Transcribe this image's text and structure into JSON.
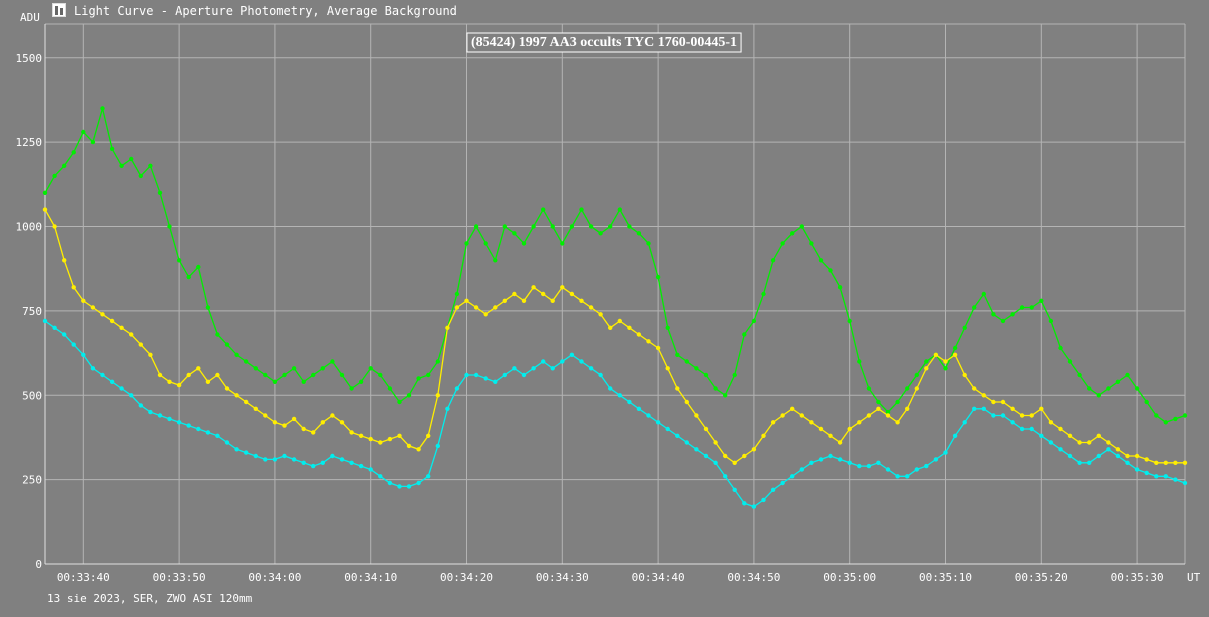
{
  "window": {
    "title": "Light Curve - Aperture Photometry, Average Background",
    "icon": "light-curve-app-icon"
  },
  "footer": {
    "text": "13 sie 2023, SER, ZWO ASI 120mm"
  },
  "colors": {
    "background": "#808080",
    "grid": "#b4b4b4",
    "text": "#ffffff",
    "green": "#00ee00",
    "yellow": "#ffee00",
    "cyan": "#00eeee"
  },
  "chart_data": {
    "type": "line",
    "title": "(85424) 1997 AA3 occults TYC 1760-00445-1",
    "ylabel": "ADU",
    "xunit": "UT",
    "grid": true,
    "ylim": [
      0,
      1600
    ],
    "yticks": [
      0,
      250,
      500,
      750,
      1000,
      1250,
      1500
    ],
    "xlim": [
      "00:33:36.0",
      "00:35:35.0"
    ],
    "xticks": [
      "00:33:40",
      "00:33:50",
      "00:34:00",
      "00:34:10",
      "00:34:20",
      "00:34:30",
      "00:34:40",
      "00:34:50",
      "00:35:00",
      "00:35:10",
      "00:35:20",
      "00:35:30"
    ],
    "series": [
      {
        "color": "green",
        "x": [
          "00:33:36.0",
          "00:33:37.0",
          "00:33:38.0",
          "00:33:39.0",
          "00:33:40.0",
          "00:33:41.0",
          "00:33:42.0",
          "00:33:43.0",
          "00:33:44.0",
          "00:33:45.0",
          "00:33:46.0",
          "00:33:47.0",
          "00:33:48.0",
          "00:33:49.0",
          "00:33:50.0",
          "00:33:51.0",
          "00:33:52.0",
          "00:33:53.0",
          "00:33:54.0",
          "00:33:55.0",
          "00:33:56.0",
          "00:33:57.0",
          "00:33:58.0",
          "00:33:59.0",
          "00:34:00.0",
          "00:34:01.0",
          "00:34:02.0",
          "00:34:03.0",
          "00:34:04.0",
          "00:34:05.0",
          "00:34:06.0",
          "00:34:07.0",
          "00:34:08.0",
          "00:34:09.0",
          "00:34:10.0",
          "00:34:11.0",
          "00:34:12.0",
          "00:34:13.0",
          "00:34:14.0",
          "00:34:15.0",
          "00:34:16.0",
          "00:34:17.0",
          "00:34:18.0",
          "00:34:19.0",
          "00:34:20.0",
          "00:34:21.0",
          "00:34:22.0",
          "00:34:23.0",
          "00:34:24.0",
          "00:34:25.0",
          "00:34:26.0",
          "00:34:27.0",
          "00:34:28.0",
          "00:34:29.0",
          "00:34:30.0",
          "00:34:31.0",
          "00:34:32.0",
          "00:34:33.0",
          "00:34:34.0",
          "00:34:35.0",
          "00:34:36.0",
          "00:34:37.0",
          "00:34:38.0",
          "00:34:39.0",
          "00:34:40.0",
          "00:34:41.0",
          "00:34:42.0",
          "00:34:43.0",
          "00:34:44.0",
          "00:34:45.0",
          "00:34:46.0",
          "00:34:47.0",
          "00:34:48.0",
          "00:34:49.0",
          "00:34:50.0",
          "00:34:51.0",
          "00:34:52.0",
          "00:34:53.0",
          "00:34:54.0",
          "00:34:55.0",
          "00:34:56.0",
          "00:34:57.0",
          "00:34:58.0",
          "00:34:59.0",
          "00:35:00.0",
          "00:35:01.0",
          "00:35:02.0",
          "00:35:03.0",
          "00:35:04.0",
          "00:35:05.0",
          "00:35:06.0",
          "00:35:07.0",
          "00:35:08.0",
          "00:35:09.0",
          "00:35:10.0",
          "00:35:11.0",
          "00:35:12.0",
          "00:35:13.0",
          "00:35:14.0",
          "00:35:15.0",
          "00:35:16.0",
          "00:35:17.0",
          "00:35:18.0",
          "00:35:19.0",
          "00:35:20.0",
          "00:35:21.0",
          "00:35:22.0",
          "00:35:23.0",
          "00:35:24.0",
          "00:35:25.0",
          "00:35:26.0",
          "00:35:27.0",
          "00:35:28.0",
          "00:35:29.0",
          "00:35:30.0",
          "00:35:31.0",
          "00:35:32.0",
          "00:35:33.0",
          "00:35:34.0",
          "00:35:35.0"
        ],
        "y": [
          1100,
          1150,
          1180,
          1220,
          1280,
          1250,
          1350,
          1230,
          1180,
          1200,
          1150,
          1180,
          1100,
          1000,
          900,
          850,
          880,
          760,
          680,
          650,
          620,
          600,
          580,
          560,
          540,
          560,
          580,
          540,
          560,
          580,
          600,
          560,
          520,
          540,
          580,
          560,
          520,
          480,
          500,
          550,
          560,
          600,
          700,
          800,
          950,
          1000,
          950,
          900,
          1000,
          980,
          950,
          1000,
          1050,
          1000,
          950,
          1000,
          1050,
          1000,
          980,
          1000,
          1050,
          1000,
          980,
          950,
          850,
          700,
          620,
          600,
          580,
          560,
          520,
          500,
          560,
          680,
          720,
          800,
          900,
          950,
          980,
          1000,
          950,
          900,
          870,
          820,
          720,
          600,
          520,
          480,
          450,
          480,
          520,
          560,
          600,
          620,
          580,
          640,
          700,
          760,
          800,
          740,
          720,
          740,
          760,
          760,
          780,
          720,
          640,
          600,
          560,
          520,
          500,
          520,
          540,
          560,
          520,
          480,
          440,
          420,
          430,
          440
        ]
      },
      {
        "color": "yellow",
        "x": [
          "00:33:36.0",
          "00:33:37.0",
          "00:33:38.0",
          "00:33:39.0",
          "00:33:40.0",
          "00:33:41.0",
          "00:33:42.0",
          "00:33:43.0",
          "00:33:44.0",
          "00:33:45.0",
          "00:33:46.0",
          "00:33:47.0",
          "00:33:48.0",
          "00:33:49.0",
          "00:33:50.0",
          "00:33:51.0",
          "00:33:52.0",
          "00:33:53.0",
          "00:33:54.0",
          "00:33:55.0",
          "00:33:56.0",
          "00:33:57.0",
          "00:33:58.0",
          "00:33:59.0",
          "00:34:00.0",
          "00:34:01.0",
          "00:34:02.0",
          "00:34:03.0",
          "00:34:04.0",
          "00:34:05.0",
          "00:34:06.0",
          "00:34:07.0",
          "00:34:08.0",
          "00:34:09.0",
          "00:34:10.0",
          "00:34:11.0",
          "00:34:12.0",
          "00:34:13.0",
          "00:34:14.0",
          "00:34:15.0",
          "00:34:16.0",
          "00:34:17.0",
          "00:34:18.0",
          "00:34:19.0",
          "00:34:20.0",
          "00:34:21.0",
          "00:34:22.0",
          "00:34:23.0",
          "00:34:24.0",
          "00:34:25.0",
          "00:34:26.0",
          "00:34:27.0",
          "00:34:28.0",
          "00:34:29.0",
          "00:34:30.0",
          "00:34:31.0",
          "00:34:32.0",
          "00:34:33.0",
          "00:34:34.0",
          "00:34:35.0",
          "00:34:36.0",
          "00:34:37.0",
          "00:34:38.0",
          "00:34:39.0",
          "00:34:40.0",
          "00:34:41.0",
          "00:34:42.0",
          "00:34:43.0",
          "00:34:44.0",
          "00:34:45.0",
          "00:34:46.0",
          "00:34:47.0",
          "00:34:48.0",
          "00:34:49.0",
          "00:34:50.0",
          "00:34:51.0",
          "00:34:52.0",
          "00:34:53.0",
          "00:34:54.0",
          "00:34:55.0",
          "00:34:56.0",
          "00:34:57.0",
          "00:34:58.0",
          "00:34:59.0",
          "00:35:00.0",
          "00:35:01.0",
          "00:35:02.0",
          "00:35:03.0",
          "00:35:04.0",
          "00:35:05.0",
          "00:35:06.0",
          "00:35:07.0",
          "00:35:08.0",
          "00:35:09.0",
          "00:35:10.0",
          "00:35:11.0",
          "00:35:12.0",
          "00:35:13.0",
          "00:35:14.0",
          "00:35:15.0",
          "00:35:16.0",
          "00:35:17.0",
          "00:35:18.0",
          "00:35:19.0",
          "00:35:20.0",
          "00:35:21.0",
          "00:35:22.0",
          "00:35:23.0",
          "00:35:24.0",
          "00:35:25.0",
          "00:35:26.0",
          "00:35:27.0",
          "00:35:28.0",
          "00:35:29.0",
          "00:35:30.0",
          "00:35:31.0",
          "00:35:32.0",
          "00:35:33.0",
          "00:35:34.0",
          "00:35:35.0"
        ],
        "y": [
          1050,
          1000,
          900,
          820,
          780,
          760,
          740,
          720,
          700,
          680,
          650,
          620,
          560,
          540,
          530,
          560,
          580,
          540,
          560,
          520,
          500,
          480,
          460,
          440,
          420,
          410,
          430,
          400,
          390,
          420,
          440,
          420,
          390,
          380,
          370,
          360,
          370,
          380,
          350,
          340,
          380,
          500,
          700,
          760,
          780,
          760,
          740,
          760,
          780,
          800,
          780,
          820,
          800,
          780,
          820,
          800,
          780,
          760,
          740,
          700,
          720,
          700,
          680,
          660,
          640,
          580,
          520,
          480,
          440,
          400,
          360,
          320,
          300,
          320,
          340,
          380,
          420,
          440,
          460,
          440,
          420,
          400,
          380,
          360,
          400,
          420,
          440,
          460,
          440,
          420,
          460,
          520,
          580,
          620,
          600,
          620,
          560,
          520,
          500,
          480,
          480,
          460,
          440,
          440,
          460,
          420,
          400,
          380,
          360,
          360,
          380,
          360,
          340,
          320,
          320,
          310,
          300,
          300,
          300,
          300
        ]
      },
      {
        "color": "cyan",
        "x": [
          "00:33:36.0",
          "00:33:37.0",
          "00:33:38.0",
          "00:33:39.0",
          "00:33:40.0",
          "00:33:41.0",
          "00:33:42.0",
          "00:33:43.0",
          "00:33:44.0",
          "00:33:45.0",
          "00:33:46.0",
          "00:33:47.0",
          "00:33:48.0",
          "00:33:49.0",
          "00:33:50.0",
          "00:33:51.0",
          "00:33:52.0",
          "00:33:53.0",
          "00:33:54.0",
          "00:33:55.0",
          "00:33:56.0",
          "00:33:57.0",
          "00:33:58.0",
          "00:33:59.0",
          "00:34:00.0",
          "00:34:01.0",
          "00:34:02.0",
          "00:34:03.0",
          "00:34:04.0",
          "00:34:05.0",
          "00:34:06.0",
          "00:34:07.0",
          "00:34:08.0",
          "00:34:09.0",
          "00:34:10.0",
          "00:34:11.0",
          "00:34:12.0",
          "00:34:13.0",
          "00:34:14.0",
          "00:34:15.0",
          "00:34:16.0",
          "00:34:17.0",
          "00:34:18.0",
          "00:34:19.0",
          "00:34:20.0",
          "00:34:21.0",
          "00:34:22.0",
          "00:34:23.0",
          "00:34:24.0",
          "00:34:25.0",
          "00:34:26.0",
          "00:34:27.0",
          "00:34:28.0",
          "00:34:29.0",
          "00:34:30.0",
          "00:34:31.0",
          "00:34:32.0",
          "00:34:33.0",
          "00:34:34.0",
          "00:34:35.0",
          "00:34:36.0",
          "00:34:37.0",
          "00:34:38.0",
          "00:34:39.0",
          "00:34:40.0",
          "00:34:41.0",
          "00:34:42.0",
          "00:34:43.0",
          "00:34:44.0",
          "00:34:45.0",
          "00:34:46.0",
          "00:34:47.0",
          "00:34:48.0",
          "00:34:49.0",
          "00:34:50.0",
          "00:34:51.0",
          "00:34:52.0",
          "00:34:53.0",
          "00:34:54.0",
          "00:34:55.0",
          "00:34:56.0",
          "00:34:57.0",
          "00:34:58.0",
          "00:34:59.0",
          "00:35:00.0",
          "00:35:01.0",
          "00:35:02.0",
          "00:35:03.0",
          "00:35:04.0",
          "00:35:05.0",
          "00:35:06.0",
          "00:35:07.0",
          "00:35:08.0",
          "00:35:09.0",
          "00:35:10.0",
          "00:35:11.0",
          "00:35:12.0",
          "00:35:13.0",
          "00:35:14.0",
          "00:35:15.0",
          "00:35:16.0",
          "00:35:17.0",
          "00:35:18.0",
          "00:35:19.0",
          "00:35:20.0",
          "00:35:21.0",
          "00:35:22.0",
          "00:35:23.0",
          "00:35:24.0",
          "00:35:25.0",
          "00:35:26.0",
          "00:35:27.0",
          "00:35:28.0",
          "00:35:29.0",
          "00:35:30.0",
          "00:35:31.0",
          "00:35:32.0",
          "00:35:33.0",
          "00:35:34.0",
          "00:35:35.0"
        ],
        "y": [
          720,
          700,
          680,
          650,
          620,
          580,
          560,
          540,
          520,
          500,
          470,
          450,
          440,
          430,
          420,
          410,
          400,
          390,
          380,
          360,
          340,
          330,
          320,
          310,
          310,
          320,
          310,
          300,
          290,
          300,
          320,
          310,
          300,
          290,
          280,
          260,
          240,
          230,
          230,
          240,
          260,
          350,
          460,
          520,
          560,
          560,
          550,
          540,
          560,
          580,
          560,
          580,
          600,
          580,
          600,
          620,
          600,
          580,
          560,
          520,
          500,
          480,
          460,
          440,
          420,
          400,
          380,
          360,
          340,
          320,
          300,
          260,
          220,
          180,
          170,
          190,
          220,
          240,
          260,
          280,
          300,
          310,
          320,
          310,
          300,
          290,
          290,
          300,
          280,
          260,
          260,
          280,
          290,
          310,
          330,
          380,
          420,
          460,
          460,
          440,
          440,
          420,
          400,
          400,
          380,
          360,
          340,
          320,
          300,
          300,
          320,
          340,
          320,
          300,
          280,
          270,
          260,
          260,
          250,
          240
        ]
      }
    ]
  }
}
